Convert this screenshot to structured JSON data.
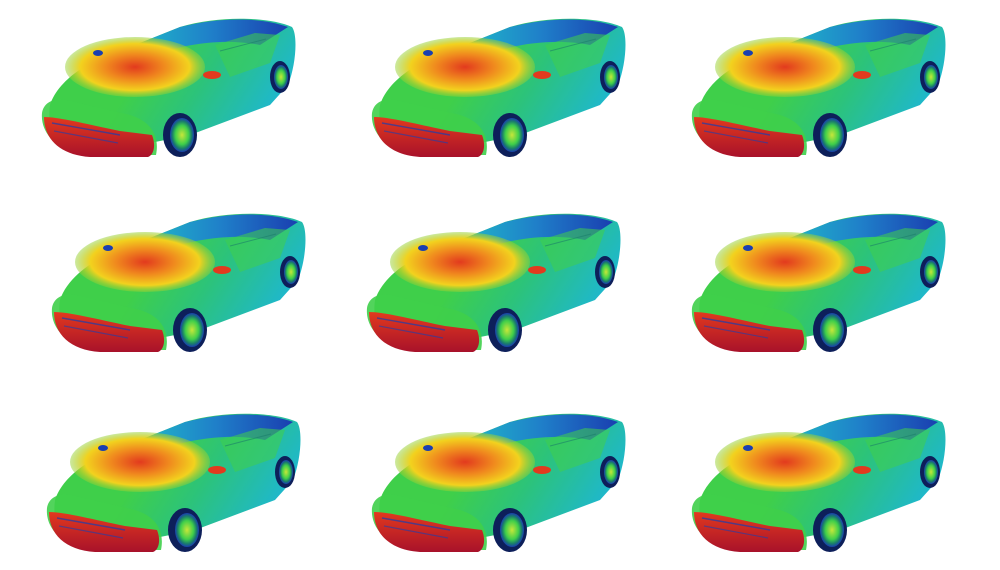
{
  "grid": {
    "rows": 3,
    "columns": 3,
    "background": "#ffffff"
  },
  "colormap": {
    "low": "#1a3fb0",
    "mid_low": "#1fb8c9",
    "mid": "#3fcf4a",
    "mid_high": "#f2d21e",
    "high": "#e23a1e",
    "max": "#a8122a"
  },
  "cars": [
    {
      "id": "car-1",
      "variant": 1
    },
    {
      "id": "car-2",
      "variant": 2
    },
    {
      "id": "car-3",
      "variant": 3
    },
    {
      "id": "car-4",
      "variant": 4
    },
    {
      "id": "car-5",
      "variant": 5
    },
    {
      "id": "car-6",
      "variant": 6
    },
    {
      "id": "car-7",
      "variant": 7
    },
    {
      "id": "car-8",
      "variant": 8
    },
    {
      "id": "car-9",
      "variant": 9
    }
  ]
}
